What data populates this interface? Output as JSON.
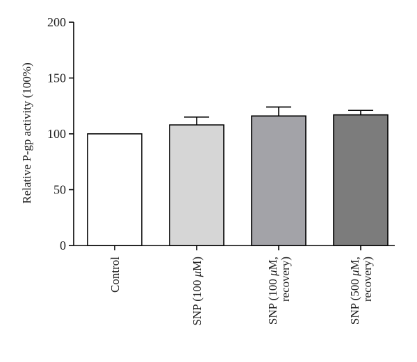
{
  "chart_data": {
    "type": "bar",
    "title": "",
    "xlabel": "",
    "ylabel": "Relative P-gp activity (100%)",
    "ylim": [
      0,
      200
    ],
    "yticks": [
      0,
      50,
      100,
      150,
      200
    ],
    "grid": false,
    "categories": [
      {
        "lines": [
          [
            "Control"
          ]
        ]
      },
      {
        "lines": [
          [
            "SNP (100 ",
            "μ",
            "M)"
          ]
        ]
      },
      {
        "lines": [
          [
            "SNP (100 ",
            "μ",
            "M,"
          ],
          [
            "recovery)"
          ]
        ]
      },
      {
        "lines": [
          [
            "SNP (500 ",
            "μ",
            "M,"
          ],
          [
            "recovery)"
          ]
        ]
      }
    ],
    "values": [
      100,
      108,
      116,
      117
    ],
    "errors": [
      0,
      7,
      8,
      4
    ],
    "colors": [
      "#ffffff",
      "#d6d6d6",
      "#a3a3a8",
      "#7c7c7c"
    ]
  }
}
